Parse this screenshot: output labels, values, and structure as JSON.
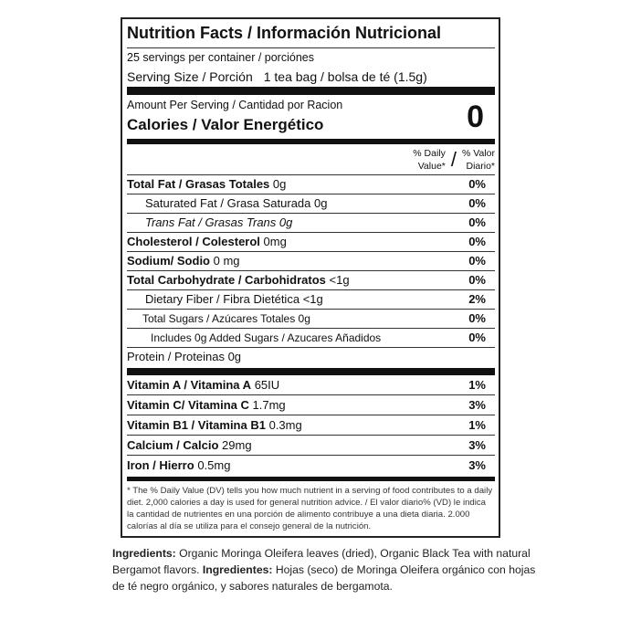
{
  "title": "Nutrition Facts / Información Nutricional",
  "servings": "25 servings per container / porciónes",
  "serving_size": {
    "label": "Serving Size / Porción",
    "value": "1 tea bag / bolsa de té (1.5g)"
  },
  "amount_per_serving": "Amount Per Serving / Cantidad por Racion",
  "calories": {
    "label": "Calories / Valor Energético",
    "value": "0"
  },
  "dv_header": {
    "en_line1": "% Daily",
    "en_line2": "Value*",
    "slash": "/",
    "es_line1": "% Valor",
    "es_line2": "Diario*"
  },
  "nutrients": [
    {
      "label": "Total Fat / Grasas Totales",
      "amount": "0g",
      "dv": "0%",
      "style": "bold"
    },
    {
      "label": "Saturated Fat / Grasa Saturada",
      "amount": "0g",
      "dv": "0%",
      "style": "indent"
    },
    {
      "label": "Trans Fat / Grasas Trans",
      "amount": "0g",
      "dv": "0%",
      "style": "italic"
    },
    {
      "label": "Cholesterol / Colesterol",
      "amount": "0mg",
      "dv": "0%",
      "style": "bold"
    },
    {
      "label": "Sodium/ Sodio",
      "amount": "0 mg",
      "dv": "0%",
      "style": "bold"
    },
    {
      "label": "Total Carbohydrate / Carbohidratos",
      "amount": "<1g",
      "dv": "0%",
      "style": "bold"
    },
    {
      "label": "Dietary Fiber / Fibra Dietética",
      "amount": "<1g",
      "dv": "2%",
      "style": "indent"
    },
    {
      "label": "Total Sugars / Azúcares Totales",
      "amount": "0g",
      "dv": "0%",
      "style": "indent2"
    },
    {
      "label": "Includes 0g Added Sugars / Azucares Añadidos",
      "amount": "",
      "dv": "0%",
      "style": "indent3"
    },
    {
      "label": "Protein / Proteinas",
      "amount": "0g",
      "dv": "",
      "style": "plain"
    }
  ],
  "vitamins": [
    {
      "label": "Vitamin A / Vitamina A",
      "amount": "65IU",
      "dv": "1%"
    },
    {
      "label": "Vitamin C/ Vitamina C",
      "amount": "1.7mg",
      "dv": "3%"
    },
    {
      "label": "Vitamin B1 / Vitamina B1",
      "amount": "0.3mg",
      "dv": "1%"
    },
    {
      "label": "Calcium / Calcio",
      "amount": "29mg",
      "dv": "3%"
    },
    {
      "label": "Iron / Hierro",
      "amount": "0.5mg",
      "dv": "3%"
    }
  ],
  "footnote": "* The % Daily Value (DV) tells you how much nutrient in a serving of food contributes to a daily diet. 2,000 calories a day is used for general nutrition advice. / El valor diario% (VD) le indica la cantidad de nutrientes en una porción de alimento contribuye a una dieta diaria. 2.000 calorías al día se utiliza para el consejo general de la nutrición.",
  "ingredients": {
    "en_label": "Ingredients:",
    "en_text": "Organic Moringa Oleifera leaves (dried), Organic Black Tea with natural Bergamot flavors.",
    "es_label": "Ingredientes:",
    "es_text": "Hojas (seco) de Moringa Oleifera orgánico con hojas de té negro orgánico, y sabores naturales de bergamota."
  }
}
